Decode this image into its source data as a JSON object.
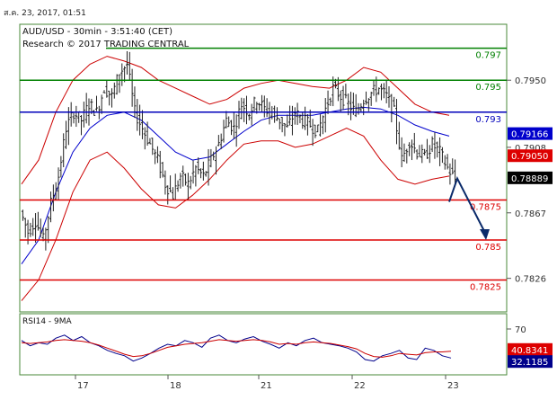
{
  "header": {
    "timestamp": "ส.ค. 23, 2017, 01:51",
    "symbol_line": "AUD/USD - 30min - 3:51:40 (CET)",
    "research_line": "Research © 2017 TRADING CENTRAL"
  },
  "colors": {
    "background": "#ffffff",
    "panel_border": "#4a8a3a",
    "candles": "#222222",
    "bollinger": "#cc0000",
    "moving_average": "#0000cc",
    "resistance": "#008000",
    "pivot": "#0000bb",
    "support": "#dd0000",
    "arrow": "#0a2a6a",
    "rsi_line": "#00008b",
    "rsi_ma": "#cc0000",
    "tick_text": "#333333"
  },
  "chart_data": [
    {
      "type": "candlestick",
      "title": "AUD/USD - 30min",
      "x_tick_labels": [
        "17",
        "18",
        "21",
        "22",
        "23"
      ],
      "y_tick_labels": [
        "0.7950",
        "0.7908",
        "0.7867",
        "0.7826"
      ],
      "ylim": [
        0.7805,
        0.7985
      ],
      "levels": [
        {
          "label": "0.797",
          "value": 0.797,
          "color": "#008000",
          "kind": "resistance"
        },
        {
          "label": "0.795",
          "value": 0.795,
          "color": "#008000",
          "kind": "resistance"
        },
        {
          "label": "0.793",
          "value": 0.793,
          "color": "#0000bb",
          "kind": "pivot"
        },
        {
          "label": "0.7875",
          "value": 0.7875,
          "color": "#dd0000",
          "kind": "support"
        },
        {
          "label": "0.785",
          "value": 0.785,
          "color": "#dd0000",
          "kind": "support"
        },
        {
          "label": "0.7825",
          "value": 0.7825,
          "color": "#dd0000",
          "kind": "support"
        }
      ],
      "price_tags": [
        {
          "label": "0.79166",
          "value": 0.79166,
          "color": "#0000cc"
        },
        {
          "label": "0.79050",
          "value": 0.7905,
          "color": "#dd0000"
        },
        {
          "label": "0.78889",
          "value": 0.78889,
          "color": "#000000"
        }
      ],
      "close_path": [
        0.7868,
        0.7855,
        0.7862,
        0.785,
        0.7873,
        0.789,
        0.792,
        0.793,
        0.7925,
        0.7935,
        0.793,
        0.7945,
        0.794,
        0.7955,
        0.796,
        0.793,
        0.792,
        0.791,
        0.79,
        0.7885,
        0.7878,
        0.789,
        0.7885,
        0.7895,
        0.789,
        0.79,
        0.791,
        0.7925,
        0.792,
        0.7935,
        0.793,
        0.7938,
        0.7932,
        0.793,
        0.7925,
        0.792,
        0.793,
        0.7925,
        0.7922,
        0.7918,
        0.7932,
        0.7945,
        0.794,
        0.7935,
        0.793,
        0.7938,
        0.7942,
        0.7945,
        0.794,
        0.793,
        0.79,
        0.7912,
        0.7905,
        0.7902,
        0.791,
        0.7905,
        0.7895,
        0.7888
      ],
      "bollinger_upper": [
        0.7885,
        0.79,
        0.793,
        0.795,
        0.796,
        0.7965,
        0.7962,
        0.7958,
        0.795,
        0.7945,
        0.794,
        0.7935,
        0.7938,
        0.7945,
        0.7948,
        0.795,
        0.7948,
        0.7946,
        0.7945,
        0.795,
        0.7958,
        0.7955,
        0.7945,
        0.7935,
        0.793,
        0.7928
      ],
      "bollinger_lower": [
        0.7812,
        0.7825,
        0.785,
        0.788,
        0.79,
        0.7905,
        0.7895,
        0.7882,
        0.7872,
        0.787,
        0.7878,
        0.7888,
        0.79,
        0.791,
        0.7912,
        0.7912,
        0.7908,
        0.791,
        0.7915,
        0.792,
        0.7915,
        0.79,
        0.7888,
        0.7885,
        0.7888,
        0.789
      ],
      "moving_average": [
        0.7835,
        0.785,
        0.788,
        0.7905,
        0.792,
        0.7928,
        0.793,
        0.7925,
        0.7915,
        0.7905,
        0.79,
        0.7902,
        0.791,
        0.7918,
        0.7925,
        0.7928,
        0.7928,
        0.7928,
        0.793,
        0.7932,
        0.7933,
        0.7932,
        0.7928,
        0.7922,
        0.7918,
        0.7915
      ],
      "projection_arrow": {
        "from": 0.7893,
        "to": 0.785
      }
    },
    {
      "type": "line",
      "title": "RSI14 - 9MA",
      "y_tick_labels": [
        "70"
      ],
      "ylim": [
        10,
        90
      ],
      "price_tags": [
        {
          "label": "40.8341",
          "value": 40.8341,
          "color": "#dd0000"
        },
        {
          "label": "32.1185",
          "value": 32.1185,
          "color": "#00008b"
        }
      ],
      "series": [
        {
          "values": [
            55,
            48,
            52,
            50,
            58,
            62,
            55,
            60,
            52,
            48,
            42,
            38,
            35,
            28,
            32,
            38,
            45,
            50,
            48,
            55,
            52,
            46,
            58,
            62,
            55,
            52,
            57,
            60,
            54,
            50,
            45,
            52,
            48,
            55,
            58,
            52,
            50,
            48,
            45,
            40,
            30,
            28,
            35,
            38,
            42,
            32,
            30,
            45,
            42,
            35,
            32
          ]
        },
        {
          "values": [
            52,
            51,
            52,
            53,
            55,
            56,
            55,
            54,
            52,
            49,
            45,
            41,
            37,
            34,
            35,
            38,
            42,
            46,
            48,
            50,
            51,
            52,
            54,
            56,
            55,
            54,
            55,
            56,
            55,
            53,
            50,
            51,
            50,
            52,
            53,
            52,
            51,
            49,
            47,
            44,
            38,
            34,
            33,
            35,
            38,
            37,
            36,
            39,
            40,
            40,
            40.8
          ]
        }
      ]
    }
  ]
}
